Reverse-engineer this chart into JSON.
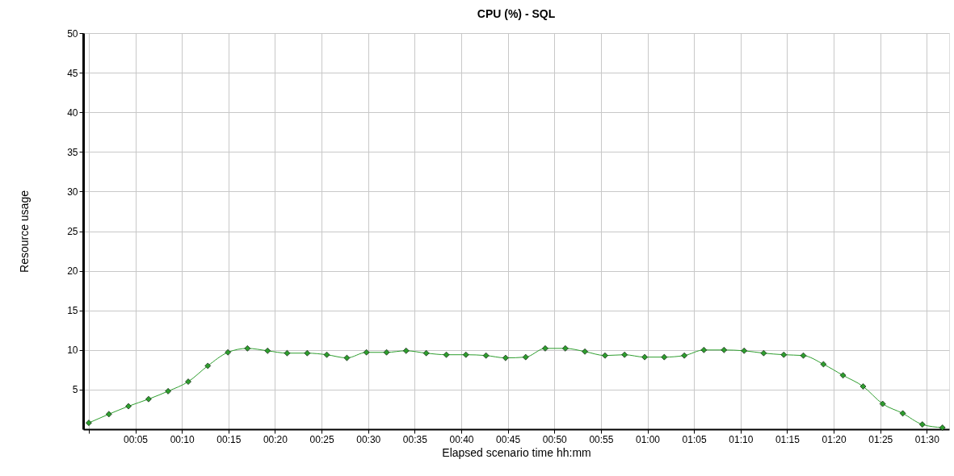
{
  "chart_data": {
    "type": "line",
    "title": "CPU (%) - SQL",
    "xlabel": "Elapsed scenario time hh:mm",
    "ylabel": "Resource usage",
    "x": [
      0,
      0.036,
      0.071,
      0.107,
      0.142,
      0.178,
      0.213,
      0.249,
      0.284,
      0.32,
      0.355,
      0.391,
      0.426,
      0.462,
      0.497,
      0.533,
      0.568,
      0.604,
      0.64,
      0.675,
      0.711,
      0.746,
      0.782,
      0.817,
      0.853,
      0.888,
      0.924,
      0.959,
      0.995,
      1.03,
      1.066,
      1.101,
      1.137,
      1.173,
      1.208,
      1.244,
      1.279,
      1.315,
      1.35,
      1.386,
      1.421,
      1.457,
      1.492,
      1.528
    ],
    "series": [
      {
        "color": "#2e9e2e",
        "values": [
          0.8,
          1.9,
          2.9,
          3.8,
          4.8,
          6.0,
          8.0,
          9.7,
          10.2,
          9.9,
          9.6,
          9.6,
          9.4,
          9.0,
          9.7,
          9.7,
          9.9,
          9.6,
          9.4,
          9.4,
          9.3,
          9.0,
          9.1,
          10.2,
          10.2,
          9.8,
          9.3,
          9.4,
          9.1,
          9.1,
          9.3,
          10.0,
          10.0,
          9.9,
          9.6,
          9.4,
          9.3,
          8.2,
          6.8,
          5.4,
          3.2,
          2.0,
          0.6,
          0.2
        ]
      }
    ],
    "xlim": [
      -0.01,
      1.54
    ],
    "xticks": [
      {
        "value": 0,
        "label": null
      },
      {
        "value": 0.0833,
        "label": "00:05"
      },
      {
        "value": 0.1667,
        "label": "00:10"
      },
      {
        "value": 0.25,
        "label": "00:15"
      },
      {
        "value": 0.3333,
        "label": "00:20"
      },
      {
        "value": 0.4167,
        "label": "00:25"
      },
      {
        "value": 0.5,
        "label": "00:30"
      },
      {
        "value": 0.5833,
        "label": "00:35"
      },
      {
        "value": 0.6667,
        "label": "00:40"
      },
      {
        "value": 0.75,
        "label": "00:45"
      },
      {
        "value": 0.8333,
        "label": "00:50"
      },
      {
        "value": 0.9167,
        "label": "00:55"
      },
      {
        "value": 1.0,
        "label": "01:00"
      },
      {
        "value": 1.0833,
        "label": "01:05"
      },
      {
        "value": 1.1667,
        "label": "01:10"
      },
      {
        "value": 1.25,
        "label": "01:15"
      },
      {
        "value": 1.3333,
        "label": "01:20"
      },
      {
        "value": 1.4167,
        "label": "01:25"
      },
      {
        "value": 1.5,
        "label": "01:30"
      }
    ],
    "ylim": [
      0,
      50
    ],
    "yticks": [
      5,
      10,
      15,
      20,
      25,
      30,
      35,
      40,
      45,
      50
    ],
    "grid": true,
    "legend": false,
    "marker": "diamond",
    "line_style": "solid"
  }
}
